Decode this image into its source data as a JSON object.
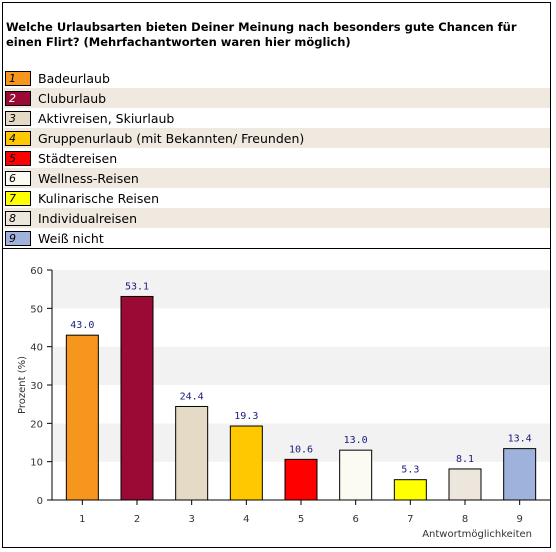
{
  "question": "Welche Urlaubsarten bieten Deiner Meinung nach besonders gute Chancen für einen Flirt? (Mehrfachantworten waren hier möglich)",
  "legend": [
    {
      "num": "1",
      "label": "Badeurlaub",
      "color": "#f7961e"
    },
    {
      "num": "2",
      "label": "Cluburlaub",
      "color": "#9b0a35"
    },
    {
      "num": "3",
      "label": "Aktivreisen, Skiurlaub",
      "color": "#e5dac6"
    },
    {
      "num": "4",
      "label": "Gruppenurlaub (mit Bekannten/ Freunden)",
      "color": "#ffc800"
    },
    {
      "num": "5",
      "label": "Städtereisen",
      "color": "#ff0000"
    },
    {
      "num": "6",
      "label": "Wellness-Reisen",
      "color": "#fbfaf3"
    },
    {
      "num": "7",
      "label": "Kulinarische Reisen",
      "color": "#ffff00"
    },
    {
      "num": "8",
      "label": "Individualreisen",
      "color": "#ede6dc"
    },
    {
      "num": "9",
      "label": "Weiß nicht",
      "color": "#9fb2dc"
    }
  ],
  "chart_data": {
    "type": "bar",
    "categories": [
      "1",
      "2",
      "3",
      "4",
      "5",
      "6",
      "7",
      "8",
      "9"
    ],
    "values": [
      43.0,
      53.1,
      24.4,
      19.3,
      10.6,
      13.0,
      5.3,
      8.1,
      13.4
    ],
    "value_labels": [
      "43.0",
      "53.1",
      "24.4",
      "19.3",
      "10.6",
      "13.0",
      "5.3",
      "8.1",
      "13.4"
    ],
    "colors": [
      "#f7961e",
      "#9b0a35",
      "#e5dac6",
      "#ffc800",
      "#ff0000",
      "#fbfaf3",
      "#ffff00",
      "#ede6dc",
      "#9fb2dc"
    ],
    "ylabel": "Prozent (%)",
    "xlabel": "Antwortmöglichkeiten",
    "ylim": [
      0,
      60
    ],
    "yticks": [
      0,
      10,
      20,
      30,
      40,
      50,
      60
    ],
    "grid": "horizontal bands"
  }
}
